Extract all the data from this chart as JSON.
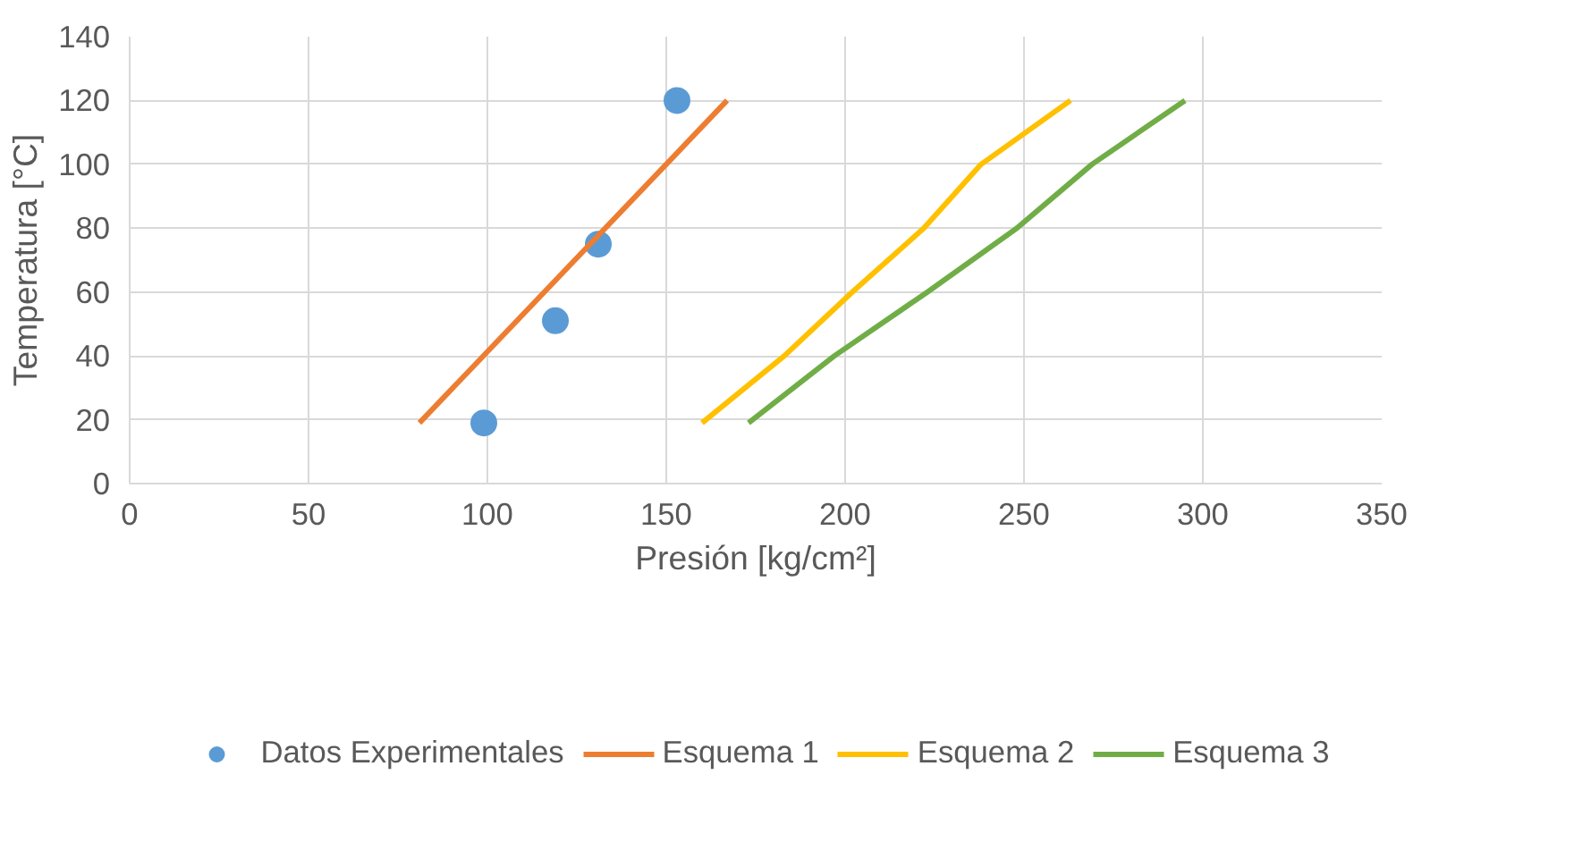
{
  "chart_data": {
    "type": "line",
    "xlabel": "Presión [kg/cm²]",
    "ylabel": "Temperatura [°C]",
    "xlim": [
      0,
      350
    ],
    "xticks": [
      0,
      50,
      100,
      150,
      200,
      250,
      300,
      350
    ],
    "ylim": [
      0,
      140
    ],
    "yticks": [
      0,
      20,
      40,
      60,
      80,
      100,
      120,
      140
    ],
    "grid": true,
    "legend": "bottom",
    "line_style": "solid",
    "series": [
      {
        "name": "Datos Experimentales",
        "type": "scatter",
        "marker": "circle",
        "color": "#5b9bd5",
        "x": [
          99,
          119,
          131,
          153
        ],
        "values": [
          19,
          51,
          75,
          120
        ]
      },
      {
        "name": "Esquema 1",
        "color": "#ed7d31",
        "x": [
          81,
          167
        ],
        "values": [
          19,
          120
        ]
      },
      {
        "name": "Esquema 2",
        "color": "#ffc000",
        "x": [
          160,
          183,
          202,
          222,
          238,
          263
        ],
        "values": [
          19,
          40,
          60,
          80,
          100,
          120
        ]
      },
      {
        "name": "Esquema 3",
        "color": "#70ad47",
        "x": [
          173,
          197,
          223,
          248,
          269,
          295
        ],
        "values": [
          19,
          40,
          60,
          80,
          100,
          120
        ]
      }
    ]
  }
}
